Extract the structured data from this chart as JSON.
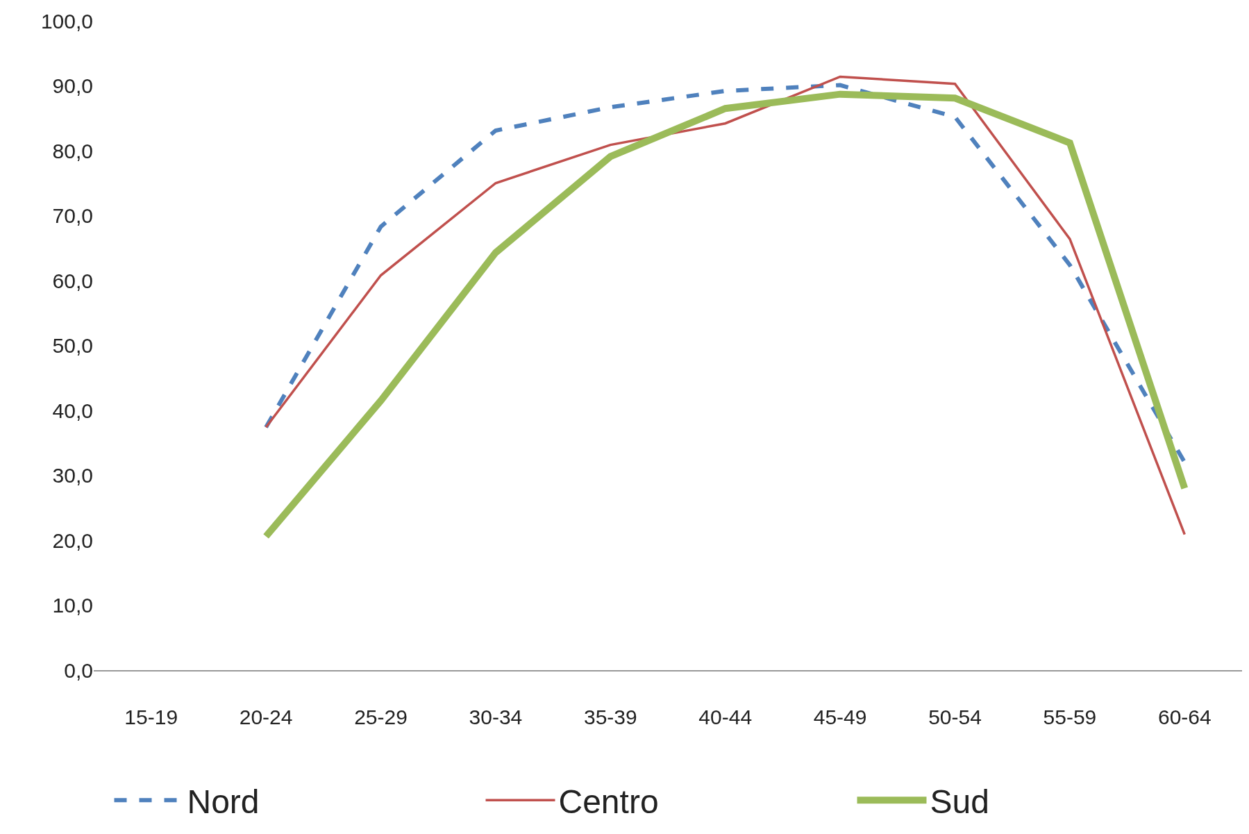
{
  "chart_data": {
    "type": "line",
    "categories": [
      "15-19",
      "20-24",
      "25-29",
      "30-34",
      "35-39",
      "40-44",
      "45-49",
      "50-54",
      "55-59",
      "60-64"
    ],
    "series": [
      {
        "name": "Nord",
        "color": "#4f81bd",
        "line_style": "dashed",
        "values": [
          null,
          37.4,
          68.3,
          83.1,
          86.7,
          89.2,
          90.1,
          85.2,
          62.4,
          32.0
        ]
      },
      {
        "name": "Centro",
        "color": "#c0504d",
        "line_style": "solid",
        "values": [
          null,
          37.4,
          60.8,
          75.0,
          80.9,
          84.2,
          91.4,
          90.3,
          66.4,
          20.9
        ]
      },
      {
        "name": "Sud",
        "color": "#9bbb59",
        "line_style": "solid",
        "values": [
          null,
          20.6,
          41.5,
          64.3,
          79.1,
          86.5,
          88.7,
          88.1,
          81.2,
          28.0
        ]
      }
    ],
    "ylim": [
      0,
      100
    ],
    "yticks": [
      {
        "value": 0,
        "label": "0,0"
      },
      {
        "value": 10,
        "label": "10,0"
      },
      {
        "value": 20,
        "label": "20,0"
      },
      {
        "value": 30,
        "label": "30,0"
      },
      {
        "value": 40,
        "label": "40,0"
      },
      {
        "value": 50,
        "label": "50,0"
      },
      {
        "value": 60,
        "label": "60,0"
      },
      {
        "value": 70,
        "label": "70,0"
      },
      {
        "value": 80,
        "label": "80,0"
      },
      {
        "value": 90,
        "label": "90,0"
      },
      {
        "value": 100,
        "label": "100,0"
      }
    ],
    "legend": "bottom",
    "marker": "none"
  }
}
